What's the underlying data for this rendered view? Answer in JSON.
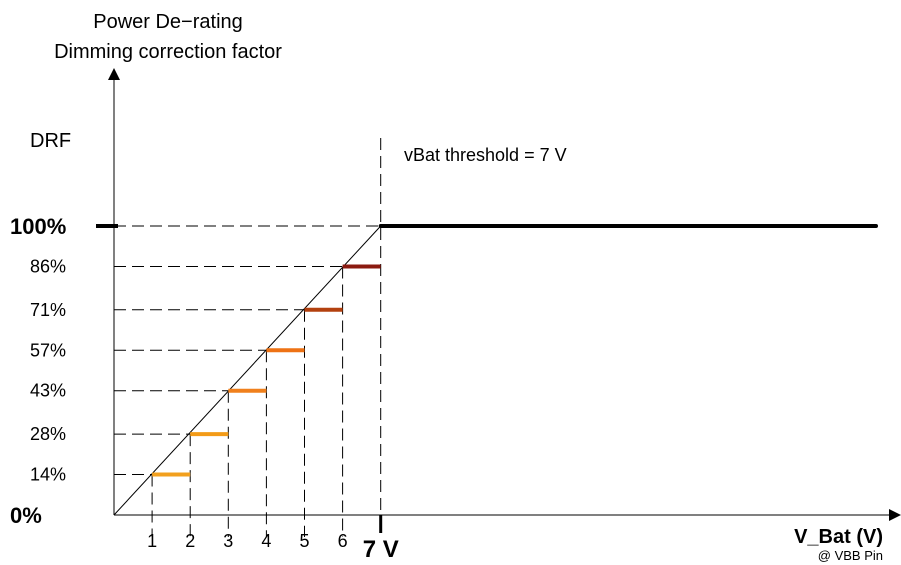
{
  "chart_data": {
    "type": "line",
    "y_axis": {
      "label_lines": [
        "Power De−rating",
        "Dimming correction factor"
      ],
      "series_label": "DRF",
      "ticks": [
        {
          "value": 0,
          "label": "0%",
          "bold": true
        },
        {
          "value": 14,
          "label": "14%",
          "bold": false
        },
        {
          "value": 28,
          "label": "28%",
          "bold": false
        },
        {
          "value": 43,
          "label": "43%",
          "bold": false
        },
        {
          "value": 57,
          "label": "57%",
          "bold": false
        },
        {
          "value": 71,
          "label": "71%",
          "bold": false
        },
        {
          "value": 86,
          "label": "86%",
          "bold": false
        },
        {
          "value": 100,
          "label": "100%",
          "bold": true
        }
      ],
      "ylim": [
        0,
        100
      ]
    },
    "x_axis": {
      "label": "V_Bat (V)",
      "sublabel": "@ VBB Pin",
      "ticks": [
        {
          "value": 1,
          "label": "1",
          "bold": false
        },
        {
          "value": 2,
          "label": "2",
          "bold": false
        },
        {
          "value": 3,
          "label": "3",
          "bold": false
        },
        {
          "value": 4,
          "label": "4",
          "bold": false
        },
        {
          "value": 5,
          "label": "5",
          "bold": false
        },
        {
          "value": 6,
          "label": "6",
          "bold": false
        },
        {
          "value": 7,
          "label": "7 V",
          "bold": true
        }
      ]
    },
    "threshold": {
      "x": 7,
      "label": "vBat threshold = 7 V"
    },
    "ramp_line": {
      "x": [
        0,
        7
      ],
      "y": [
        0,
        100
      ]
    },
    "flat_line": {
      "x": [
        7,
        20.2
      ],
      "y": [
        100,
        100
      ]
    },
    "steps": [
      {
        "x0": 1,
        "x1": 2,
        "y": 14,
        "color": "#f2a01e"
      },
      {
        "x0": 2,
        "x1": 3,
        "y": 28,
        "color": "#f39b17"
      },
      {
        "x0": 3,
        "x1": 4,
        "y": 43,
        "color": "#f0801c"
      },
      {
        "x0": 4,
        "x1": 5,
        "y": 57,
        "color": "#ee7214"
      },
      {
        "x0": 5,
        "x1": 6,
        "y": 71,
        "color": "#b3410f"
      },
      {
        "x0": 6,
        "x1": 7,
        "y": 86,
        "color": "#8b1a10"
      }
    ]
  }
}
